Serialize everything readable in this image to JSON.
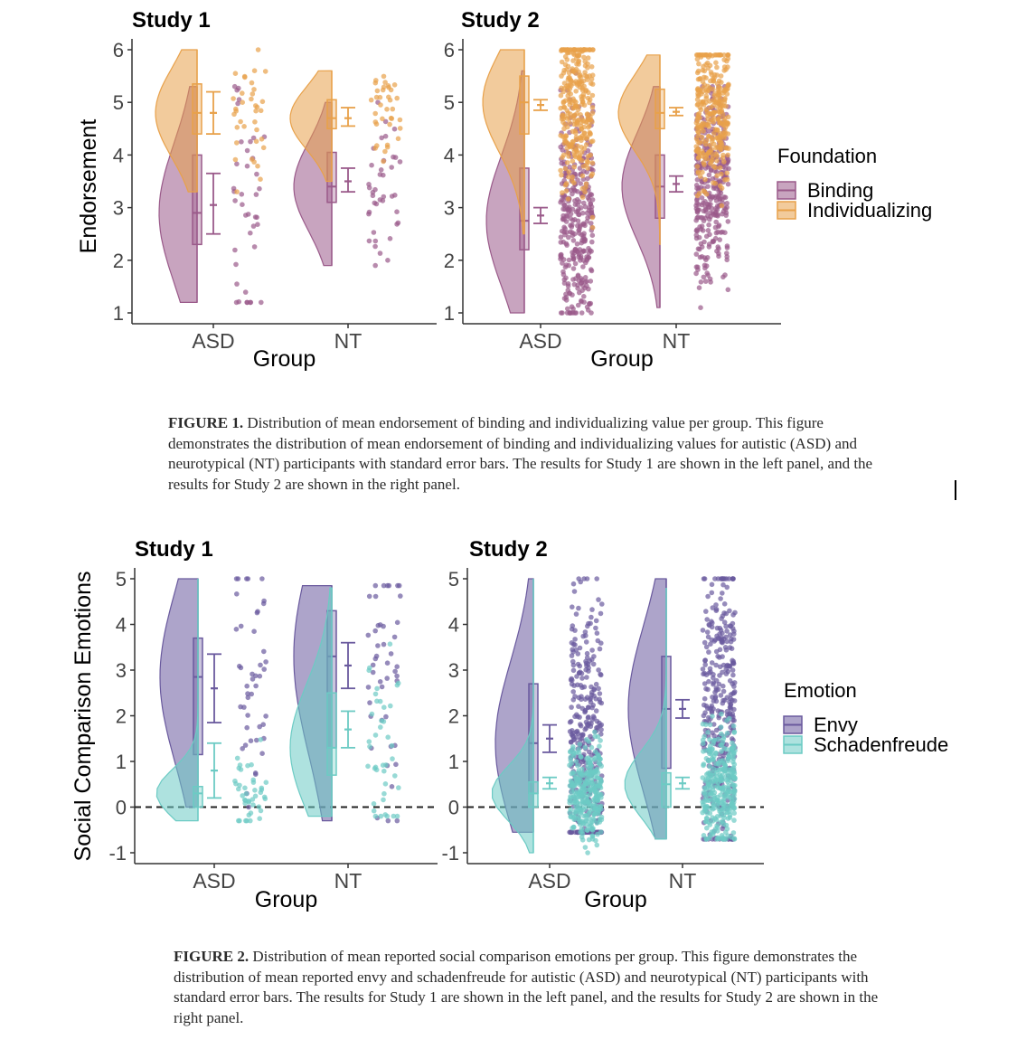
{
  "colors": {
    "binding": "#9a5a8a",
    "individualizing": "#e8a14a",
    "envy": "#6a5a9e",
    "schadenfreude": "#6ccbc4",
    "axis": "#333333"
  },
  "figure1": {
    "caption_label": "FIGURE 1.",
    "caption_text": "Distribution of mean endorsement of binding and individualizing value per group. This figure demonstrates the distribution of mean endorsement of binding and individualizing values for autistic (ASD) and neurotypical (NT) participants with standard error bars. The results for Study 1 are shown in the left panel, and the results for Study 2 are shown in the right panel.",
    "legend_title": "Foundation",
    "legend_items": [
      "Binding",
      "Individualizing"
    ]
  },
  "figure2": {
    "caption_label": "FIGURE 2.",
    "caption_text": "Distribution of mean reported social comparison emotions per group. This figure demonstrates the distribution of mean reported envy and schadenfreude for autistic (ASD) and neurotypical (NT) participants with standard error bars. The results for Study 1 are shown in the left panel, and the results for Study 2 are shown in the right panel.",
    "legend_title": "Emotion",
    "legend_items": [
      "Envy",
      "Schadenfreude"
    ]
  },
  "chart_data": [
    {
      "type": "raincloud",
      "title": "Study 1",
      "xlabel": "Group",
      "ylabel": "Endorsement",
      "categories": [
        "ASD",
        "NT"
      ],
      "ylim": [
        1,
        6
      ],
      "yticks": [
        1,
        2,
        3,
        4,
        5,
        6
      ],
      "series": [
        {
          "name": "Binding",
          "range": [
            [
              1.2,
              5.3
            ],
            [
              1.9,
              5.0
            ]
          ],
          "q1": [
            2.3,
            3.1
          ],
          "median": [
            2.9,
            3.4
          ],
          "q3": [
            4.0,
            4.05
          ],
          "se_low": [
            2.5,
            3.3
          ],
          "mean": [
            3.05,
            3.5
          ],
          "se_high": [
            3.65,
            3.75
          ]
        },
        {
          "name": "Individualizing",
          "range": [
            [
              3.3,
              6.0
            ],
            [
              3.5,
              5.6
            ]
          ],
          "q1": [
            4.4,
            4.5
          ],
          "median": [
            4.8,
            4.7
          ],
          "q3": [
            5.35,
            5.05
          ],
          "se_low": [
            4.4,
            4.55
          ],
          "mean": [
            4.8,
            4.7
          ],
          "se_high": [
            5.2,
            4.9
          ]
        }
      ]
    },
    {
      "type": "raincloud",
      "title": "Study 2",
      "xlabel": "Group",
      "ylabel": "",
      "categories": [
        "ASD",
        "NT"
      ],
      "ylim": [
        1,
        6
      ],
      "yticks": [
        1,
        2,
        3,
        4,
        5,
        6
      ],
      "series": [
        {
          "name": "Binding",
          "range": [
            [
              1.0,
              5.6
            ],
            [
              1.1,
              5.3
            ]
          ],
          "q1": [
            2.2,
            2.8
          ],
          "median": [
            2.75,
            3.4
          ],
          "q3": [
            3.75,
            4.0
          ],
          "se_low": [
            2.7,
            3.3
          ],
          "mean": [
            2.85,
            3.45
          ],
          "se_high": [
            3.0,
            3.6
          ]
        },
        {
          "name": "Individualizing",
          "range": [
            [
              2.5,
              6.0
            ],
            [
              2.3,
              5.9
            ]
          ],
          "q1": [
            4.4,
            4.5
          ],
          "median": [
            5.0,
            4.8
          ],
          "q3": [
            5.5,
            5.25
          ],
          "se_low": [
            4.85,
            4.75
          ],
          "mean": [
            4.95,
            4.82
          ],
          "se_high": [
            5.05,
            4.9
          ]
        }
      ]
    },
    {
      "type": "raincloud",
      "title": "Study 1",
      "xlabel": "Group",
      "ylabel": "Social Comparison Emotions",
      "categories": [
        "ASD",
        "NT"
      ],
      "ylim": [
        -1,
        5
      ],
      "yticks": [
        -1,
        0,
        1,
        2,
        3,
        4,
        5
      ],
      "reference_line": 0,
      "series": [
        {
          "name": "Envy",
          "range": [
            [
              0.0,
              5.0
            ],
            [
              -0.3,
              4.85
            ]
          ],
          "q1": [
            1.15,
            1.3
          ],
          "median": [
            2.85,
            3.3
          ],
          "q3": [
            3.7,
            4.3
          ],
          "se_low": [
            1.85,
            2.6
          ],
          "mean": [
            2.6,
            3.1
          ],
          "se_high": [
            3.35,
            3.6
          ]
        },
        {
          "name": "Schadenfreude",
          "range": [
            [
              -0.3,
              5.0
            ],
            [
              -0.2,
              4.8
            ]
          ],
          "q1": [
            0.0,
            0.7
          ],
          "median": [
            0.3,
            1.3
          ],
          "q3": [
            0.45,
            2.5
          ],
          "se_low": [
            0.2,
            1.3
          ],
          "mean": [
            0.8,
            1.7
          ],
          "se_high": [
            1.4,
            2.1
          ]
        }
      ]
    },
    {
      "type": "raincloud",
      "title": "Study 2",
      "xlabel": "Group",
      "ylabel": "",
      "categories": [
        "ASD",
        "NT"
      ],
      "ylim": [
        -1,
        5
      ],
      "yticks": [
        -1,
        0,
        1,
        2,
        3,
        4,
        5
      ],
      "reference_line": 0,
      "series": [
        {
          "name": "Envy",
          "range": [
            [
              -0.55,
              5.0
            ],
            [
              -0.7,
              5.0
            ]
          ],
          "q1": [
            0.3,
            0.85
          ],
          "median": [
            1.4,
            2.15
          ],
          "q3": [
            2.7,
            3.3
          ],
          "se_low": [
            1.2,
            1.95
          ],
          "mean": [
            1.5,
            2.15
          ],
          "se_high": [
            1.8,
            2.35
          ]
        },
        {
          "name": "Schadenfreude",
          "range": [
            [
              -1.0,
              5.0
            ],
            [
              -0.7,
              4.8
            ]
          ],
          "q1": [
            0.0,
            0.0
          ],
          "median": [
            0.3,
            0.5
          ],
          "q3": [
            0.55,
            0.75
          ],
          "se_low": [
            0.4,
            0.4
          ],
          "mean": [
            0.52,
            0.52
          ],
          "se_high": [
            0.65,
            0.65
          ]
        }
      ]
    }
  ]
}
